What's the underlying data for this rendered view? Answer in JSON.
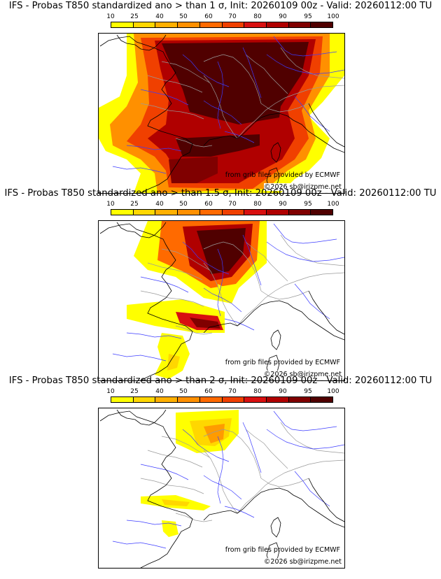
{
  "colorbar": {
    "labels": [
      "10",
      "25",
      "40",
      "50",
      "60",
      "70",
      "80",
      "90",
      "95",
      "100"
    ],
    "colors": [
      "#ffff00",
      "#ffd700",
      "#ffb000",
      "#ff9000",
      "#ff6a00",
      "#f04000",
      "#d81010",
      "#b00000",
      "#800000",
      "#500000"
    ]
  },
  "panels": [
    {
      "title": "IFS - Probas T850  standardized ano > than 1 σ, Init: 20260109 00z - Valid: 20260112:00 TU",
      "threshold": "1 σ"
    },
    {
      "title": "IFS - Probas T850  standardized ano > than 1.5 σ, Init: 20260109 00z - Valid: 20260112:00 TU",
      "threshold": "1.5 σ"
    },
    {
      "title": "IFS - Probas T850  standardized ano > than 2 σ, Init: 20260109 00z - Valid: 20260112:00 TU",
      "threshold": "2 σ"
    }
  ],
  "credits": {
    "source": "from grib files provided by ECMWF",
    "copyright": "©2026 sb@irizpme.net"
  },
  "map_colors": {
    "coast": "#000000",
    "rivers": "#3c3cff",
    "borders": "#9a9a9a"
  }
}
